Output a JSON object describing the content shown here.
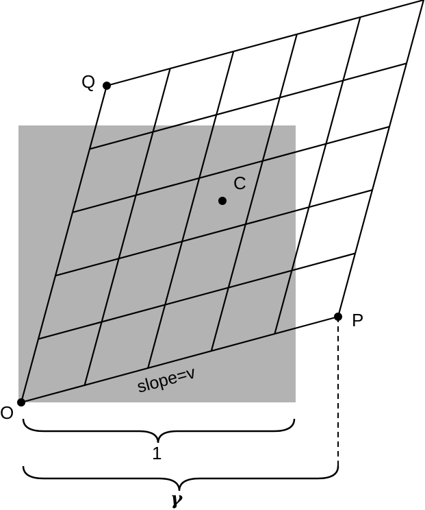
{
  "figure": {
    "points": {
      "origin": "O",
      "p": "P",
      "q": "Q",
      "center": "C"
    },
    "slope_label": "slope=v",
    "brace_unit_label": "1",
    "brace_gamma_label": "γ",
    "grid_divisions": 5,
    "colors": {
      "square_fill": "#b3b3b3",
      "line": "#000000"
    }
  }
}
